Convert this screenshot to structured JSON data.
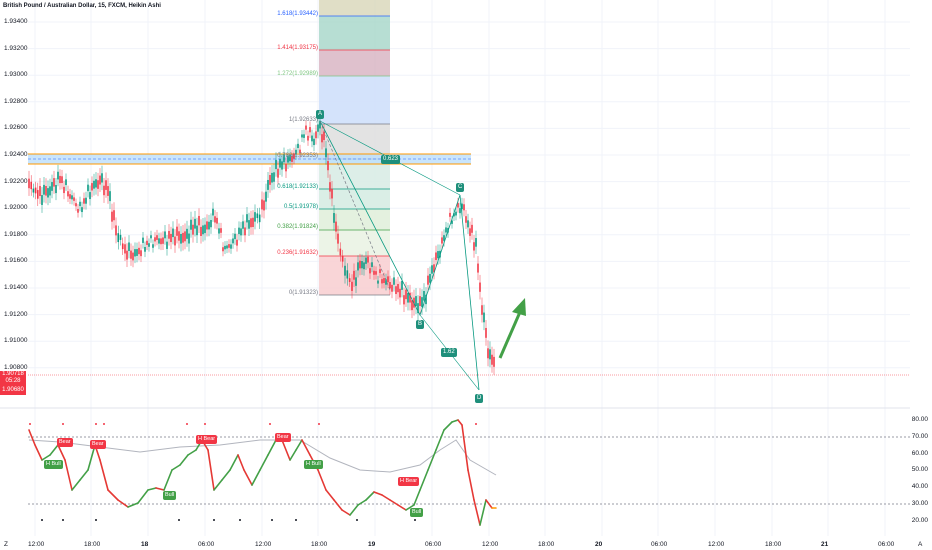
{
  "header": {
    "symbol_line": "British Pound / Australian Dollar, 15, FXCM, Heikin Ashi"
  },
  "price_axis": [
    "1.93400",
    "1.93200",
    "1.93000",
    "1.92800",
    "1.92600",
    "1.92400",
    "1.92200",
    "1.92000",
    "1.91800",
    "1.91600",
    "1.91400",
    "1.91200",
    "1.91000",
    "1.90800"
  ],
  "left_badge": {
    "price": "1.90718",
    "timer": "05:28",
    "low": "1.90680",
    "color": "#f23645"
  },
  "time_axis": {
    "labels": [
      "12:00",
      "18:00",
      "18",
      "06:00",
      "12:00",
      "18:00",
      "19",
      "06:00",
      "12:00",
      "18:00",
      "20",
      "06:00",
      "12:00",
      "18:00",
      "21",
      "06:00"
    ],
    "bold": [
      "18",
      "19",
      "20",
      "21"
    ]
  },
  "fib_levels": [
    {
      "label": "1.618(1.93442)",
      "color": "#2962ff"
    },
    {
      "label": "1.414(1.93175)",
      "color": "#f23645"
    },
    {
      "label": "1.272(1.92989)",
      "color": "#81c784"
    },
    {
      "label": "1(1.92633)",
      "color": "#787b86"
    },
    {
      "label": "0.786(1.92353)",
      "color": "#787b86"
    },
    {
      "label": "0.618(1.92133)",
      "color": "#089981"
    },
    {
      "label": "0.5(1.91978)",
      "color": "#089981"
    },
    {
      "label": "0.382(1.91824)",
      "color": "#43a047"
    },
    {
      "label": "0.236(1.91632)",
      "color": "#f23645"
    },
    {
      "label": "0(1.91323)",
      "color": "#787b86"
    }
  ],
  "harmonic": {
    "points": [
      "A",
      "B",
      "C",
      "D"
    ],
    "ratio_upper": "0.623",
    "ratio_lower": "1.62"
  },
  "oscillator_axis": [
    "80.00",
    "70.00",
    "60.00",
    "50.00",
    "40.00",
    "30.00",
    "20.00"
  ],
  "signals": [
    {
      "text": "H Bull",
      "type": "bull"
    },
    {
      "text": "Bear",
      "type": "bear"
    },
    {
      "text": "Bear",
      "type": "bear"
    },
    {
      "text": "H Bear",
      "type": "bear"
    },
    {
      "text": "Bear",
      "type": "bear"
    },
    {
      "text": "Bull",
      "type": "bull"
    },
    {
      "text": "H Bull",
      "type": "bull"
    },
    {
      "text": "H Bear",
      "type": "bear"
    },
    {
      "text": "Bull",
      "type": "bull"
    }
  ],
  "corner": {
    "left": "Z",
    "right": "A"
  },
  "colors": {
    "up": "#089981",
    "down": "#f23645",
    "ma": "#b2b5be",
    "pattern": "#089981"
  }
}
